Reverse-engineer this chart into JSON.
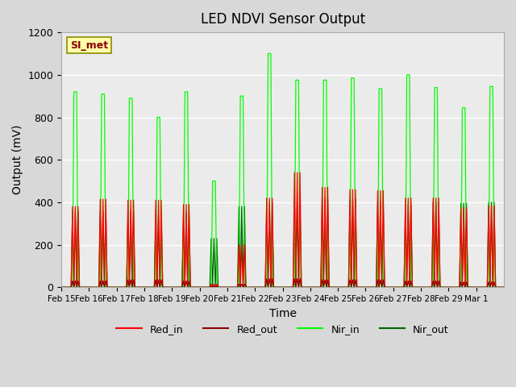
{
  "title": "LED NDVI Sensor Output",
  "xlabel": "Time",
  "ylabel": "Output (mV)",
  "ylim": [
    0,
    1200
  ],
  "yticks": [
    0,
    200,
    400,
    600,
    800,
    1000,
    1200
  ],
  "background_color": "#d8d8d8",
  "plot_background": "#ebebeb",
  "legend_label": "SI_met",
  "legend_entries": [
    "Red_in",
    "Red_out",
    "Nir_in",
    "Nir_out"
  ],
  "legend_colors": [
    "#ff0000",
    "#8b0000",
    "#00ff00",
    "#006400"
  ],
  "x_dates": [
    "Feb 15",
    "Feb 16",
    "Feb 17",
    "Feb 18",
    "Feb 19",
    "Feb 20",
    "Feb 21",
    "Feb 22",
    "Feb 23",
    "Feb 24",
    "Feb 25",
    "Feb 26",
    "Feb 27",
    "Feb 28",
    "Feb 29",
    "Mar 1"
  ],
  "red_in_peaks": [
    380,
    415,
    410,
    410,
    390,
    15,
    200,
    420,
    540,
    470,
    460,
    455,
    420,
    420,
    375,
    385
  ],
  "red_out_peaks": [
    30,
    30,
    35,
    35,
    30,
    5,
    15,
    40,
    40,
    35,
    35,
    35,
    30,
    30,
    25,
    25
  ],
  "nir_in_peaks": [
    920,
    910,
    890,
    800,
    920,
    500,
    900,
    1100,
    975,
    975,
    985,
    935,
    1000,
    940,
    845,
    945
  ],
  "nir_out_peaks": [
    360,
    360,
    360,
    340,
    350,
    230,
    380,
    400,
    400,
    420,
    415,
    400,
    390,
    400,
    395,
    400
  ]
}
